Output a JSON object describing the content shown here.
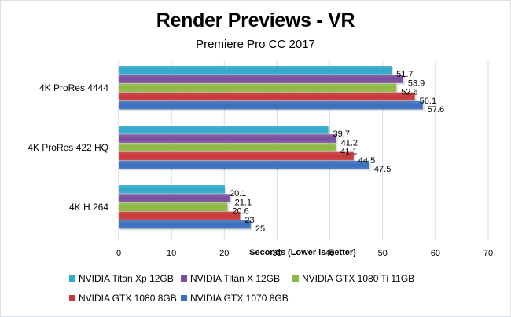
{
  "chart_data": {
    "type": "bar",
    "orientation": "horizontal",
    "title": "Render Previews - VR",
    "subtitle": "Premiere Pro CC 2017",
    "xlabel": "Seconds  (Lower is Better)",
    "ylabel": "",
    "xlim": [
      0,
      70
    ],
    "xticks": [
      "0",
      "10",
      "20",
      "30",
      "40",
      "50",
      "60",
      "70"
    ],
    "grid": true,
    "legend_position": "bottom",
    "categories": [
      "4K ProRes 4444",
      "4K ProRes 422 HQ",
      "4K H.264"
    ],
    "series": [
      {
        "name": "NVIDIA Titan Xp 12GB",
        "color": "#31a9c9",
        "values": [
          51.7,
          39.7,
          20.1
        ],
        "labels": [
          "51.7",
          "39.7",
          "20.1"
        ]
      },
      {
        "name": "NVIDIA Titan X 12GB",
        "color": "#7a4e9f",
        "values": [
          53.9,
          41.2,
          21.1
        ],
        "labels": [
          "53.9",
          "41.2",
          "21.1"
        ]
      },
      {
        "name": "NVIDIA GTX 1080 Ti 11GB",
        "color": "#8db844",
        "values": [
          52.6,
          41.1,
          20.6
        ],
        "labels": [
          "52.6",
          "41.1",
          "20.6"
        ]
      },
      {
        "name": "NVIDIA GTX 1080 8GB",
        "color": "#c8383a",
        "values": [
          56.1,
          44.5,
          23
        ],
        "labels": [
          "56.1",
          "44.5",
          "23"
        ]
      },
      {
        "name": "NVIDIA GTX 1070 8GB",
        "color": "#3a6fbf",
        "values": [
          57.6,
          47.5,
          25
        ],
        "labels": [
          "57.6",
          "47.5",
          "25"
        ]
      }
    ]
  }
}
